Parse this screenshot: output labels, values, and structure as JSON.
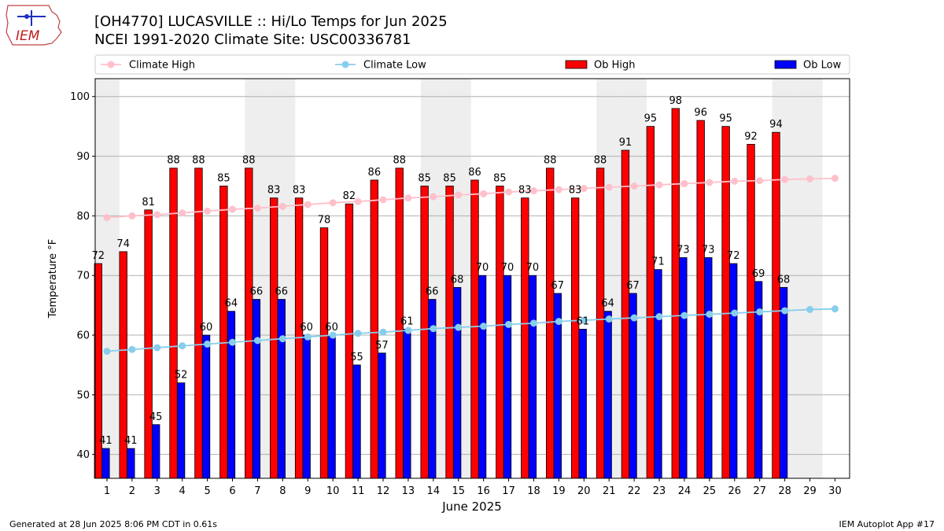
{
  "header": {
    "title_line1": "[OH4770] LUCASVILLE :: Hi/Lo Temps for Jun 2025",
    "title_line2": "NCEI 1991-2020 Climate Site: USC00336781",
    "logo_text": "IEM"
  },
  "footer": {
    "generated": "Generated at 28 Jun 2025 8:06 PM CDT in 0.61s",
    "app": "IEM Autoplot App #17"
  },
  "colors": {
    "ob_high": "#ff0000",
    "ob_low": "#0000ff",
    "climate_high": "#ffc0cb",
    "climate_low": "#87ceeb",
    "weekend_band": "#eeeeee",
    "grid": "#b0b0b0"
  },
  "chart_data": {
    "type": "bar",
    "xlabel": "June 2025",
    "ylabel": "Temperature °F",
    "ylim": [
      36,
      103
    ],
    "yticks": [
      40,
      50,
      60,
      70,
      80,
      90,
      100
    ],
    "grid": "horizontal",
    "legend_position": "top",
    "x": [
      1,
      2,
      3,
      4,
      5,
      6,
      7,
      8,
      9,
      10,
      11,
      12,
      13,
      14,
      15,
      16,
      17,
      18,
      19,
      20,
      21,
      22,
      23,
      24,
      25,
      26,
      27,
      28,
      29,
      30
    ],
    "weekend_days": [
      1,
      7,
      8,
      14,
      15,
      21,
      22,
      28,
      29
    ],
    "series": [
      {
        "name": "Ob High",
        "kind": "bar",
        "values": [
          72,
          74,
          81,
          88,
          88,
          85,
          88,
          83,
          83,
          78,
          82,
          86,
          88,
          85,
          85,
          86,
          85,
          83,
          88,
          83,
          88,
          91,
          95,
          98,
          96,
          95,
          92,
          94,
          null,
          null
        ]
      },
      {
        "name": "Ob Low",
        "kind": "bar",
        "values": [
          41,
          41,
          45,
          52,
          60,
          64,
          66,
          66,
          60,
          60,
          55,
          57,
          61,
          66,
          68,
          70,
          70,
          70,
          67,
          61,
          64,
          67,
          71,
          73,
          73,
          72,
          69,
          68,
          null,
          null
        ]
      },
      {
        "name": "Climate High",
        "kind": "line",
        "values": [
          79.7,
          80.0,
          80.2,
          80.5,
          80.8,
          81.1,
          81.3,
          81.6,
          81.9,
          82.2,
          82.4,
          82.7,
          83.0,
          83.2,
          83.5,
          83.7,
          84.0,
          84.2,
          84.4,
          84.6,
          84.8,
          85.0,
          85.2,
          85.4,
          85.6,
          85.8,
          85.9,
          86.1,
          86.2,
          86.3
        ]
      },
      {
        "name": "Climate Low",
        "kind": "line",
        "values": [
          57.3,
          57.6,
          57.9,
          58.2,
          58.5,
          58.8,
          59.1,
          59.4,
          59.7,
          60.0,
          60.3,
          60.5,
          60.8,
          61.1,
          61.3,
          61.5,
          61.8,
          62.0,
          62.3,
          62.5,
          62.7,
          62.9,
          63.1,
          63.3,
          63.5,
          63.7,
          63.9,
          64.1,
          64.3,
          64.4
        ]
      }
    ]
  }
}
